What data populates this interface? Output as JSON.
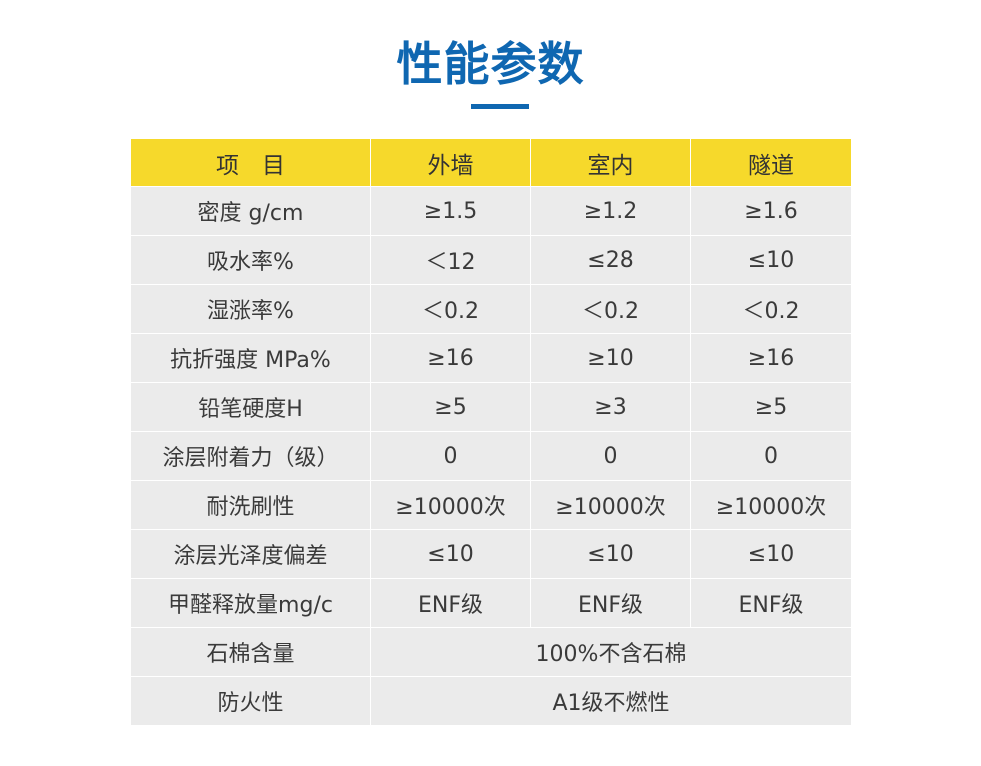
{
  "title": "性能参数",
  "table": {
    "headers": [
      "项　目",
      "外墙",
      "室内",
      "隧道"
    ],
    "rows": [
      {
        "label": "密度 g/cm",
        "values": [
          "≥1.5",
          "≥1.2",
          "≥1.6"
        ]
      },
      {
        "label": "吸水率%",
        "values": [
          "＜12",
          "≤28",
          "≤10"
        ]
      },
      {
        "label": "湿涨率%",
        "values": [
          "＜0.2",
          "＜0.2",
          "＜0.2"
        ]
      },
      {
        "label": "抗折强度 MPa%",
        "values": [
          "≥16",
          "≥10",
          "≥16"
        ]
      },
      {
        "label": "铅笔硬度H",
        "values": [
          "≥5",
          "≥3",
          "≥5"
        ]
      },
      {
        "label": "涂层附着力（级）",
        "values": [
          "0",
          "0",
          "0"
        ]
      },
      {
        "label": "耐洗刷性",
        "values": [
          "≥10000次",
          "≥10000次",
          "≥10000次"
        ]
      },
      {
        "label": "涂层光泽度偏差",
        "values": [
          "≤10",
          "≤10",
          "≤10"
        ]
      },
      {
        "label": "甲醛释放量mg/c",
        "values": [
          "ENF级",
          "ENF级",
          "ENF级"
        ]
      }
    ],
    "merged_rows": [
      {
        "label": "石棉含量",
        "value": "100%不含石棉"
      },
      {
        "label": "防火性",
        "value": "A1级不燃性"
      }
    ]
  },
  "colors": {
    "title": "#0f67b1",
    "header_bg": "#f6d92b",
    "cell_bg": "#ebebeb",
    "text": "#3a3a3a"
  }
}
